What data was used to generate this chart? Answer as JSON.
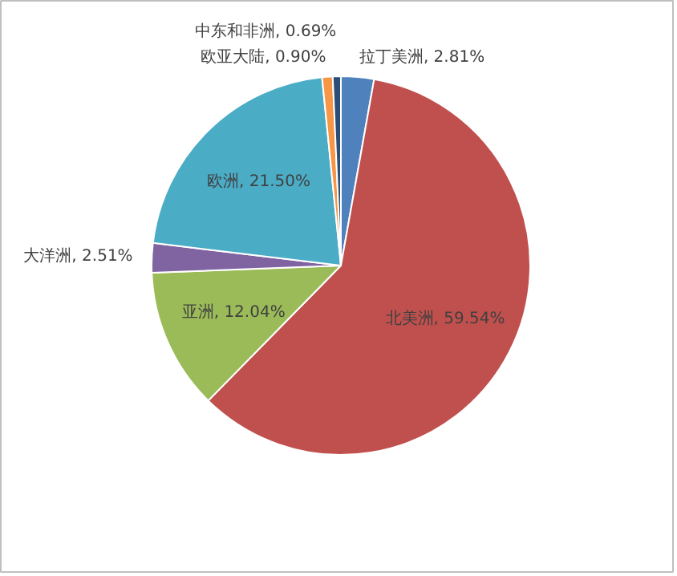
{
  "chart_data": {
    "type": "pie",
    "categories": [
      "拉丁美洲",
      "北美洲",
      "亚洲",
      "大洋洲",
      "欧洲",
      "欧亚大陆",
      "中东和非洲"
    ],
    "values": [
      2.81,
      59.54,
      12.04,
      2.51,
      21.5,
      0.9,
      0.69
    ],
    "value_labels": [
      "2.81%",
      "59.54%",
      "12.04%",
      "2.51%",
      "21.50%",
      "0.90%",
      "0.69%"
    ],
    "colors": [
      "#4f81bd",
      "#c0504d",
      "#9bbb59",
      "#8064a2",
      "#4bacc6",
      "#f79646",
      "#2c4d75"
    ]
  }
}
